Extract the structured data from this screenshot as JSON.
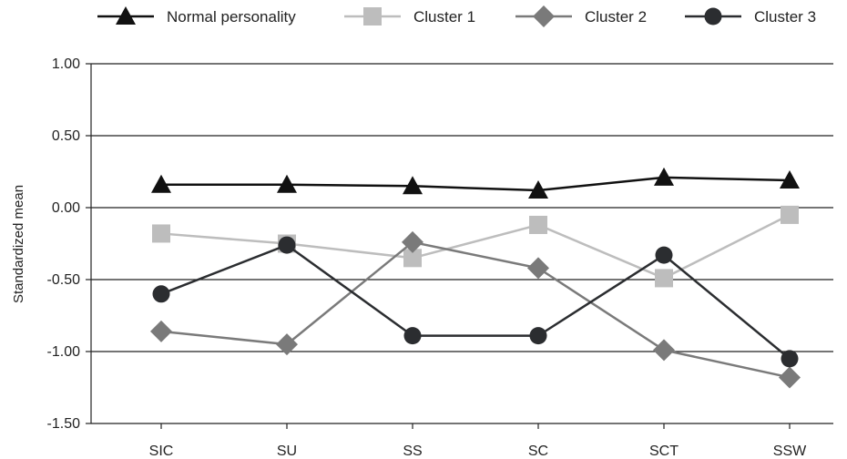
{
  "chart_data": {
    "type": "line",
    "title": "",
    "xlabel": "",
    "ylabel": "Standardized mean",
    "categories": [
      "SIC",
      "SU",
      "SS",
      "SC",
      "SCT",
      "SSW"
    ],
    "ylim": [
      -1.5,
      1.0
    ],
    "yticks": [
      "1.00",
      "0.50",
      "0.00",
      "-0.50",
      "-1.00",
      "-1.50"
    ],
    "grid": true,
    "legend_position": "top",
    "series": [
      {
        "name": "Normal personality",
        "values": [
          0.16,
          0.16,
          0.15,
          0.12,
          0.21,
          0.19
        ],
        "color": "#111111",
        "marker": "triangle"
      },
      {
        "name": "Cluster 1",
        "values": [
          -0.18,
          -0.25,
          -0.35,
          -0.12,
          -0.49,
          -0.05
        ],
        "color": "#bdbdbd",
        "marker": "square"
      },
      {
        "name": "Cluster 2",
        "values": [
          -0.86,
          -0.95,
          -0.24,
          -0.42,
          -0.99,
          -1.18
        ],
        "color": "#7a7a7a",
        "marker": "diamond"
      },
      {
        "name": "Cluster 3",
        "values": [
          -0.6,
          -0.26,
          -0.89,
          -0.89,
          -0.33,
          -1.05
        ],
        "color": "#2b2d30",
        "marker": "circle"
      }
    ]
  }
}
